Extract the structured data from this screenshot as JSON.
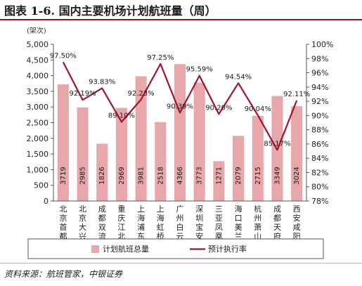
{
  "figure": {
    "title": "图表 1-6. 国内主要机场计划航班量（周）",
    "source": "资料来源：航班管家，中银证券"
  },
  "chart_data": {
    "type": "bar",
    "title": "图表 1-6. 国内主要机场计划航班量（周）",
    "categories": [
      "北京首都",
      "北京大兴",
      "成都双流",
      "重庆江北",
      "上海浦东",
      "上海虹桥",
      "广州白云",
      "深圳宝安",
      "三亚凤凰",
      "海口美兰",
      "杭州萧山",
      "成都天府",
      "西安咸阳"
    ],
    "y_unit": "(架次)",
    "ylim": [
      0,
      5000
    ],
    "yticks": [
      "0",
      "500",
      "1,000",
      "1,500",
      "2,000",
      "2,500",
      "3,000",
      "3,500",
      "4,000",
      "4,500",
      "5,000"
    ],
    "y2lim": [
      78,
      100
    ],
    "y2ticks": [
      "78%",
      "80%",
      "82%",
      "84%",
      "86%",
      "88%",
      "90%",
      "92%",
      "94%",
      "96%",
      "98%",
      "100%"
    ],
    "series": [
      {
        "name": "计划航班总量",
        "type": "bar",
        "axis": "left",
        "color": "#e7a7ab",
        "values": [
          3719,
          2985,
          1826,
          2969,
          3981,
          2518,
          4366,
          3773,
          1271,
          2079,
          2715,
          3349,
          3024
        ],
        "labels": [
          "3719",
          "2985",
          "1826",
          "2969",
          "3981",
          "2518",
          "4366",
          "3773",
          "1271",
          "2079",
          "2715",
          "3349",
          "3024"
        ]
      },
      {
        "name": "预计执行率",
        "type": "line",
        "axis": "right",
        "color": "#a01230",
        "values": [
          97.5,
          92.19,
          93.83,
          89.1,
          92.23,
          97.25,
          90.39,
          95.59,
          90.2,
          94.54,
          90.04,
          85.17,
          92.11
        ],
        "labels": [
          "97.50%",
          "92.19%",
          "93.83%",
          "89.10%",
          "92.23%",
          "97.25%",
          "90.39%",
          "95.59%",
          "90.20%",
          "94.54%",
          "90.04%",
          "85.17%",
          "92.11%"
        ]
      }
    ],
    "grid": false,
    "legend": "bottom"
  }
}
